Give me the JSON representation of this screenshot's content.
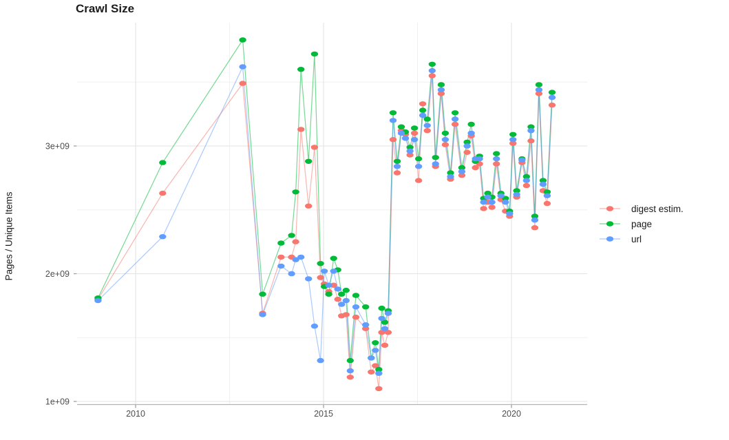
{
  "title": "Crawl Size",
  "axes": {
    "y_title": "Pages / Unique Items",
    "x_ticks": [
      {
        "v": 2010,
        "label": "2010"
      },
      {
        "v": 2015,
        "label": "2015"
      },
      {
        "v": 2020,
        "label": "2020"
      }
    ],
    "y_ticks": [
      {
        "v": 3,
        "label": "3e+09"
      },
      {
        "v": 2,
        "label": "2e+09"
      },
      {
        "v": 1,
        "label": "1e+09"
      }
    ],
    "x_minor": [
      2012.5,
      2017.5
    ],
    "y_minor": [
      1.5,
      2.5,
      3.5
    ]
  },
  "chart_data": {
    "type": "line",
    "marker": "point",
    "title": "Crawl Size",
    "xlabel": "",
    "ylabel": "Pages / Unique Items",
    "unit": "values are pages/items in billions (1e9)",
    "xlim": [
      2008.45,
      2022.0
    ],
    "ylim_billion": [
      0.98,
      3.96
    ],
    "grid": "major and minor, light gray on white",
    "legend_position": "right-center",
    "x": [
      2009.0,
      2010.72,
      2012.85,
      2013.38,
      2013.87,
      2014.15,
      2014.26,
      2014.4,
      2014.6,
      2014.76,
      2014.92,
      2015.02,
      2015.14,
      2015.27,
      2015.38,
      2015.48,
      2015.6,
      2015.71,
      2015.86,
      2016.12,
      2016.27,
      2016.38,
      2016.47,
      2016.55,
      2016.63,
      2016.72,
      2016.85,
      2016.96,
      2017.07,
      2017.18,
      2017.3,
      2017.42,
      2017.53,
      2017.64,
      2017.76,
      2017.89,
      2017.98,
      2018.13,
      2018.24,
      2018.38,
      2018.5,
      2018.68,
      2018.82,
      2018.93,
      2019.04,
      2019.15,
      2019.26,
      2019.37,
      2019.48,
      2019.6,
      2019.72,
      2019.84,
      2019.95,
      2020.04,
      2020.14,
      2020.28,
      2020.4,
      2020.52,
      2020.62,
      2020.73,
      2020.84,
      2020.95,
      2021.08
    ],
    "series": [
      {
        "name": "digest estim.",
        "color": "#F8766D",
        "values_billion": [
          1.8,
          2.63,
          3.49,
          1.69,
          2.13,
          2.13,
          2.25,
          3.13,
          2.53,
          2.99,
          1.97,
          1.92,
          1.86,
          1.91,
          1.8,
          1.67,
          1.68,
          1.19,
          1.66,
          1.57,
          1.23,
          1.28,
          1.1,
          1.54,
          1.44,
          1.54,
          3.05,
          2.79,
          3.12,
          3.09,
          2.93,
          3.1,
          2.73,
          3.33,
          3.12,
          3.55,
          2.84,
          3.41,
          3.01,
          2.74,
          3.17,
          2.77,
          2.95,
          3.08,
          2.83,
          2.86,
          2.51,
          2.56,
          2.52,
          2.86,
          2.58,
          2.49,
          2.45,
          3.02,
          2.6,
          2.87,
          2.69,
          3.04,
          2.36,
          3.41,
          2.65,
          2.55,
          3.32
        ]
      },
      {
        "name": "page",
        "color": "#00BA38",
        "values_billion": [
          1.81,
          2.87,
          3.83,
          1.84,
          2.24,
          2.3,
          2.64,
          3.6,
          2.88,
          3.72,
          2.08,
          1.9,
          1.84,
          2.12,
          2.03,
          1.84,
          1.87,
          1.32,
          1.83,
          1.74,
          1.34,
          1.46,
          1.25,
          1.73,
          1.62,
          1.71,
          3.26,
          2.88,
          3.15,
          3.11,
          2.99,
          3.14,
          2.9,
          3.28,
          3.21,
          3.64,
          2.91,
          3.48,
          3.1,
          2.79,
          3.26,
          2.83,
          3.03,
          3.17,
          2.88,
          2.92,
          2.59,
          2.63,
          2.6,
          2.94,
          2.63,
          2.59,
          2.49,
          3.09,
          2.65,
          2.9,
          2.76,
          3.15,
          2.45,
          3.48,
          2.73,
          2.64,
          3.42
        ]
      },
      {
        "name": "url",
        "color": "#619CFF",
        "values_billion": [
          1.79,
          2.29,
          3.62,
          1.68,
          2.06,
          2.0,
          2.11,
          2.13,
          1.96,
          1.59,
          1.32,
          2.02,
          1.91,
          2.02,
          1.88,
          1.76,
          1.79,
          1.24,
          1.74,
          1.6,
          1.34,
          1.4,
          1.22,
          1.65,
          1.57,
          1.69,
          3.2,
          2.84,
          3.1,
          3.06,
          2.96,
          3.05,
          2.84,
          3.24,
          3.16,
          3.59,
          2.86,
          3.44,
          3.05,
          2.76,
          3.21,
          2.8,
          3.0,
          3.1,
          2.9,
          2.9,
          2.56,
          2.6,
          2.56,
          2.9,
          2.61,
          2.56,
          2.47,
          3.05,
          2.62,
          2.89,
          2.73,
          3.12,
          2.42,
          3.44,
          2.7,
          2.61,
          3.38
        ]
      }
    ]
  }
}
